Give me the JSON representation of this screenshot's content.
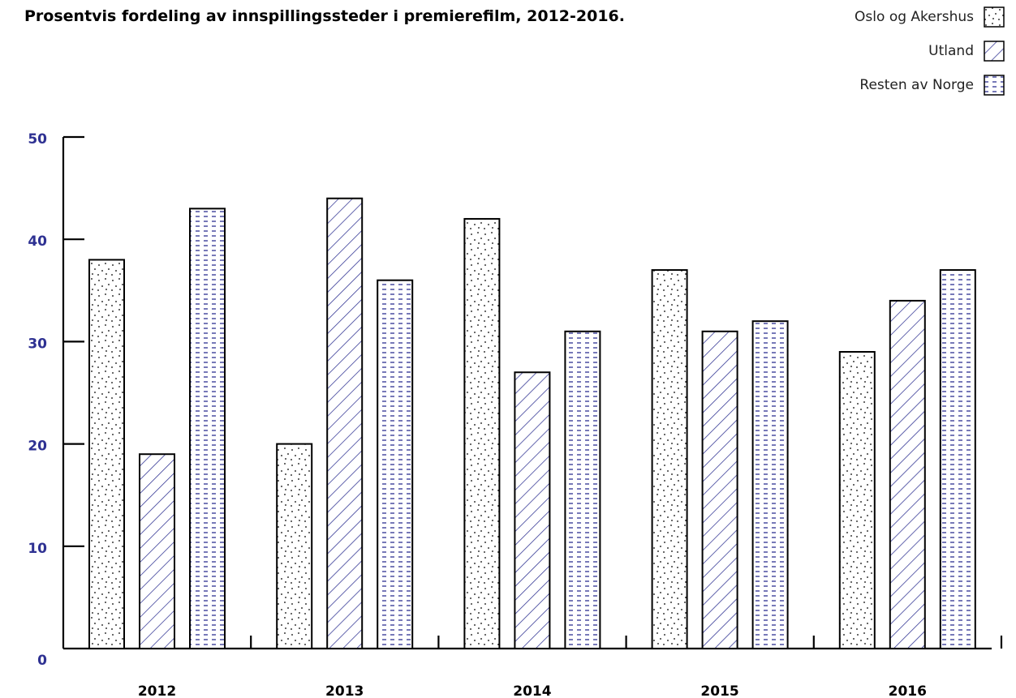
{
  "chart_data": {
    "type": "bar",
    "title": "Prosentvis fordeling av innspillingssteder i premierefilm, 2012-2016.",
    "xlabel": "",
    "ylabel": "",
    "categories": [
      "2012",
      "2013",
      "2014",
      "2015",
      "2016"
    ],
    "series": [
      {
        "name": "Oslo og Akershus",
        "pattern": "dots",
        "values": [
          38,
          20,
          42,
          37,
          29
        ]
      },
      {
        "name": "Utland",
        "pattern": "diagonal",
        "values": [
          19,
          44,
          27,
          31,
          34
        ]
      },
      {
        "name": "Resten av Norge",
        "pattern": "dashes",
        "values": [
          43,
          36,
          31,
          32,
          37
        ]
      }
    ],
    "ylim": [
      0,
      50
    ],
    "yticks": [
      "0",
      "10",
      "20",
      "30",
      "40",
      "50"
    ],
    "grid": false,
    "legend_position": "top-right",
    "colors": {
      "ytick": "#2e3192",
      "hatch": "#2e3192",
      "bar_outline": "#000000"
    }
  }
}
